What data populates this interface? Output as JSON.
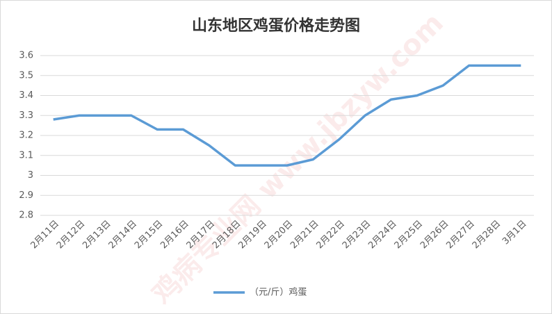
{
  "chart_data": {
    "type": "line",
    "title": "山东地区鸡蛋价格走势图",
    "watermark": "鸡病专业网 www.jbzyw.com",
    "categories": [
      "2月11日",
      "2月12日",
      "2月13日",
      "2月14日",
      "2月15日",
      "2月16日",
      "2月17日",
      "2月18日",
      "2月19日",
      "2月20日",
      "2月21日",
      "2月22日",
      "2月23日",
      "2月24日",
      "2月25日",
      "2月26日",
      "2月27日",
      "2月28日",
      "3月1日"
    ],
    "series": [
      {
        "name": "（元/斤）鸡蛋",
        "color": "#5b9bd5",
        "values": [
          3.28,
          3.3,
          3.3,
          3.3,
          3.23,
          3.23,
          3.15,
          3.05,
          3.05,
          3.05,
          3.08,
          3.18,
          3.3,
          3.38,
          3.4,
          3.45,
          3.55,
          3.55,
          3.55
        ]
      }
    ],
    "ylim": [
      2.8,
      3.6
    ],
    "yticks": [
      2.8,
      2.9,
      3,
      3.1,
      3.2,
      3.3,
      3.4,
      3.5,
      3.6
    ],
    "grid": true,
    "legend": "bottom"
  }
}
